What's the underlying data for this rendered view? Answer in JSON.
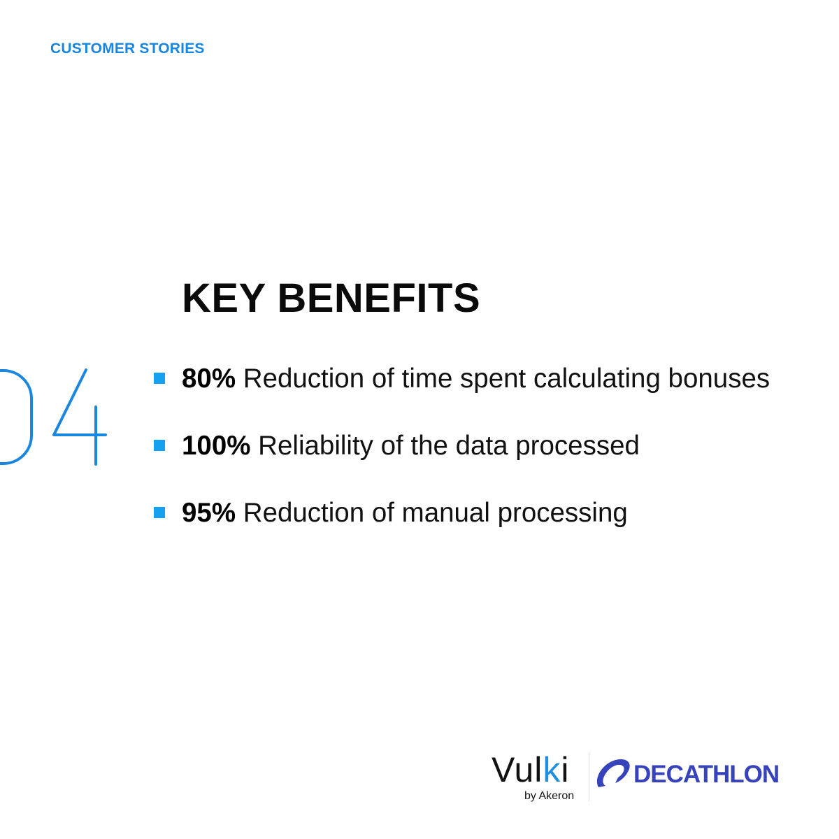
{
  "header": {
    "eyebrow": "CUSTOMER STORIES"
  },
  "section": {
    "number": "04",
    "title": "KEY BENEFITS"
  },
  "benefits": [
    {
      "percent": "80%",
      "text": "Reduction of time spent calculating bonuses"
    },
    {
      "percent": "100%",
      "text": "Reliability of the data processed"
    },
    {
      "percent": "95%",
      "text": "Reduction of manual processing"
    }
  ],
  "logos": {
    "vulki": {
      "name_prefix": "Vul",
      "name_k": "k",
      "name_suffix": "i",
      "byline": "by Akeron"
    },
    "partner": {
      "name": "DECATHLON"
    }
  },
  "colors": {
    "accent": "#1a86dd",
    "bullet": "#18a0f0",
    "partner_brand": "#3643ba"
  }
}
